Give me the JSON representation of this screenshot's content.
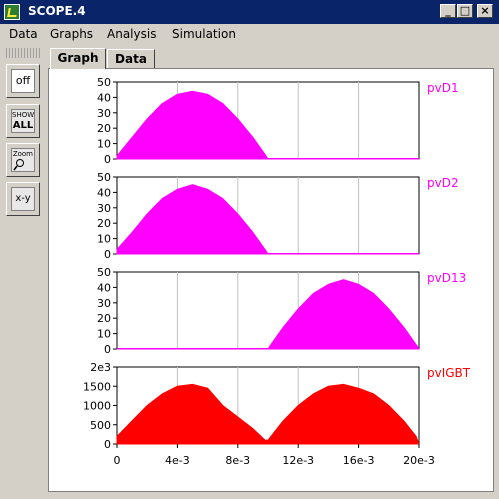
{
  "window": {
    "title": "SCOPE.4",
    "minimize": "_",
    "maximize": "□",
    "close": "×"
  },
  "menu": [
    "Data",
    "Graphs",
    "Analysis",
    "Simulation"
  ],
  "toolbar": {
    "off_label": "off",
    "show_all_top": "SHOW",
    "show_all_bottom": "ALL",
    "zoom_label": "Zoom",
    "xy_label": "x-y"
  },
  "tabs": [
    "Graph",
    "Data"
  ],
  "colors": {
    "magenta": "#ff00ff",
    "red": "#ff0000",
    "grid": "#c0c0c0"
  },
  "chart_data": [
    {
      "type": "area",
      "legend": "pvD1",
      "color": "#ff00ff",
      "yticks": [
        "50",
        "40",
        "30",
        "20",
        "10",
        "0"
      ],
      "ylim": [
        0,
        50
      ],
      "xlim": [
        0,
        0.02
      ],
      "x": [
        0.0,
        0.001,
        0.002,
        0.003,
        0.004,
        0.005,
        0.006,
        0.007,
        0.008,
        0.009,
        0.0098,
        0.01,
        0.02
      ],
      "values": [
        2,
        14,
        26,
        36,
        42,
        44,
        42,
        36,
        26,
        14,
        3,
        0,
        0
      ]
    },
    {
      "type": "area",
      "legend": "pvD2",
      "color": "#ff00ff",
      "yticks": [
        "50",
        "40",
        "30",
        "20",
        "10",
        "0"
      ],
      "ylim": [
        0,
        50
      ],
      "xlim": [
        0,
        0.02
      ],
      "x": [
        0.0,
        0.001,
        0.002,
        0.003,
        0.004,
        0.005,
        0.006,
        0.007,
        0.008,
        0.009,
        0.0098,
        0.01,
        0.02
      ],
      "values": [
        3,
        14,
        26,
        36,
        42,
        45,
        42,
        36,
        26,
        14,
        3,
        0,
        0
      ]
    },
    {
      "type": "area",
      "legend": "pvD13",
      "color": "#ff00ff",
      "yticks": [
        "50",
        "40",
        "30",
        "20",
        "10",
        "0"
      ],
      "ylim": [
        0,
        50
      ],
      "xlim": [
        0,
        0.02
      ],
      "x": [
        0.0,
        0.01,
        0.0102,
        0.011,
        0.012,
        0.013,
        0.014,
        0.015,
        0.016,
        0.017,
        0.018,
        0.019,
        0.0198,
        0.02
      ],
      "values": [
        0,
        0,
        3,
        14,
        26,
        36,
        42,
        45,
        42,
        36,
        26,
        14,
        3,
        0
      ]
    },
    {
      "type": "area",
      "legend": "pvIGBT",
      "color": "#ff0000",
      "yticks": [
        "2e3",
        "1500",
        "1000",
        "500",
        "0"
      ],
      "ylim": [
        0,
        2000
      ],
      "xlim": [
        0,
        0.02
      ],
      "x": [
        0.0,
        0.001,
        0.002,
        0.003,
        0.004,
        0.005,
        0.006,
        0.007,
        0.008,
        0.009,
        0.0098,
        0.01,
        0.011,
        0.012,
        0.013,
        0.014,
        0.015,
        0.016,
        0.017,
        0.018,
        0.019,
        0.0198,
        0.02
      ],
      "values": [
        200,
        600,
        1000,
        1300,
        1500,
        1550,
        1450,
        1000,
        700,
        400,
        100,
        100,
        600,
        1000,
        1300,
        1500,
        1550,
        1450,
        1300,
        1000,
        600,
        200,
        0
      ]
    }
  ],
  "xaxis": {
    "ticks": [
      "0",
      "4e-3",
      "8e-3",
      "12e-3",
      "16e-3",
      "20e-3"
    ],
    "values": [
      0,
      0.004,
      0.008,
      0.012,
      0.016,
      0.02
    ]
  }
}
